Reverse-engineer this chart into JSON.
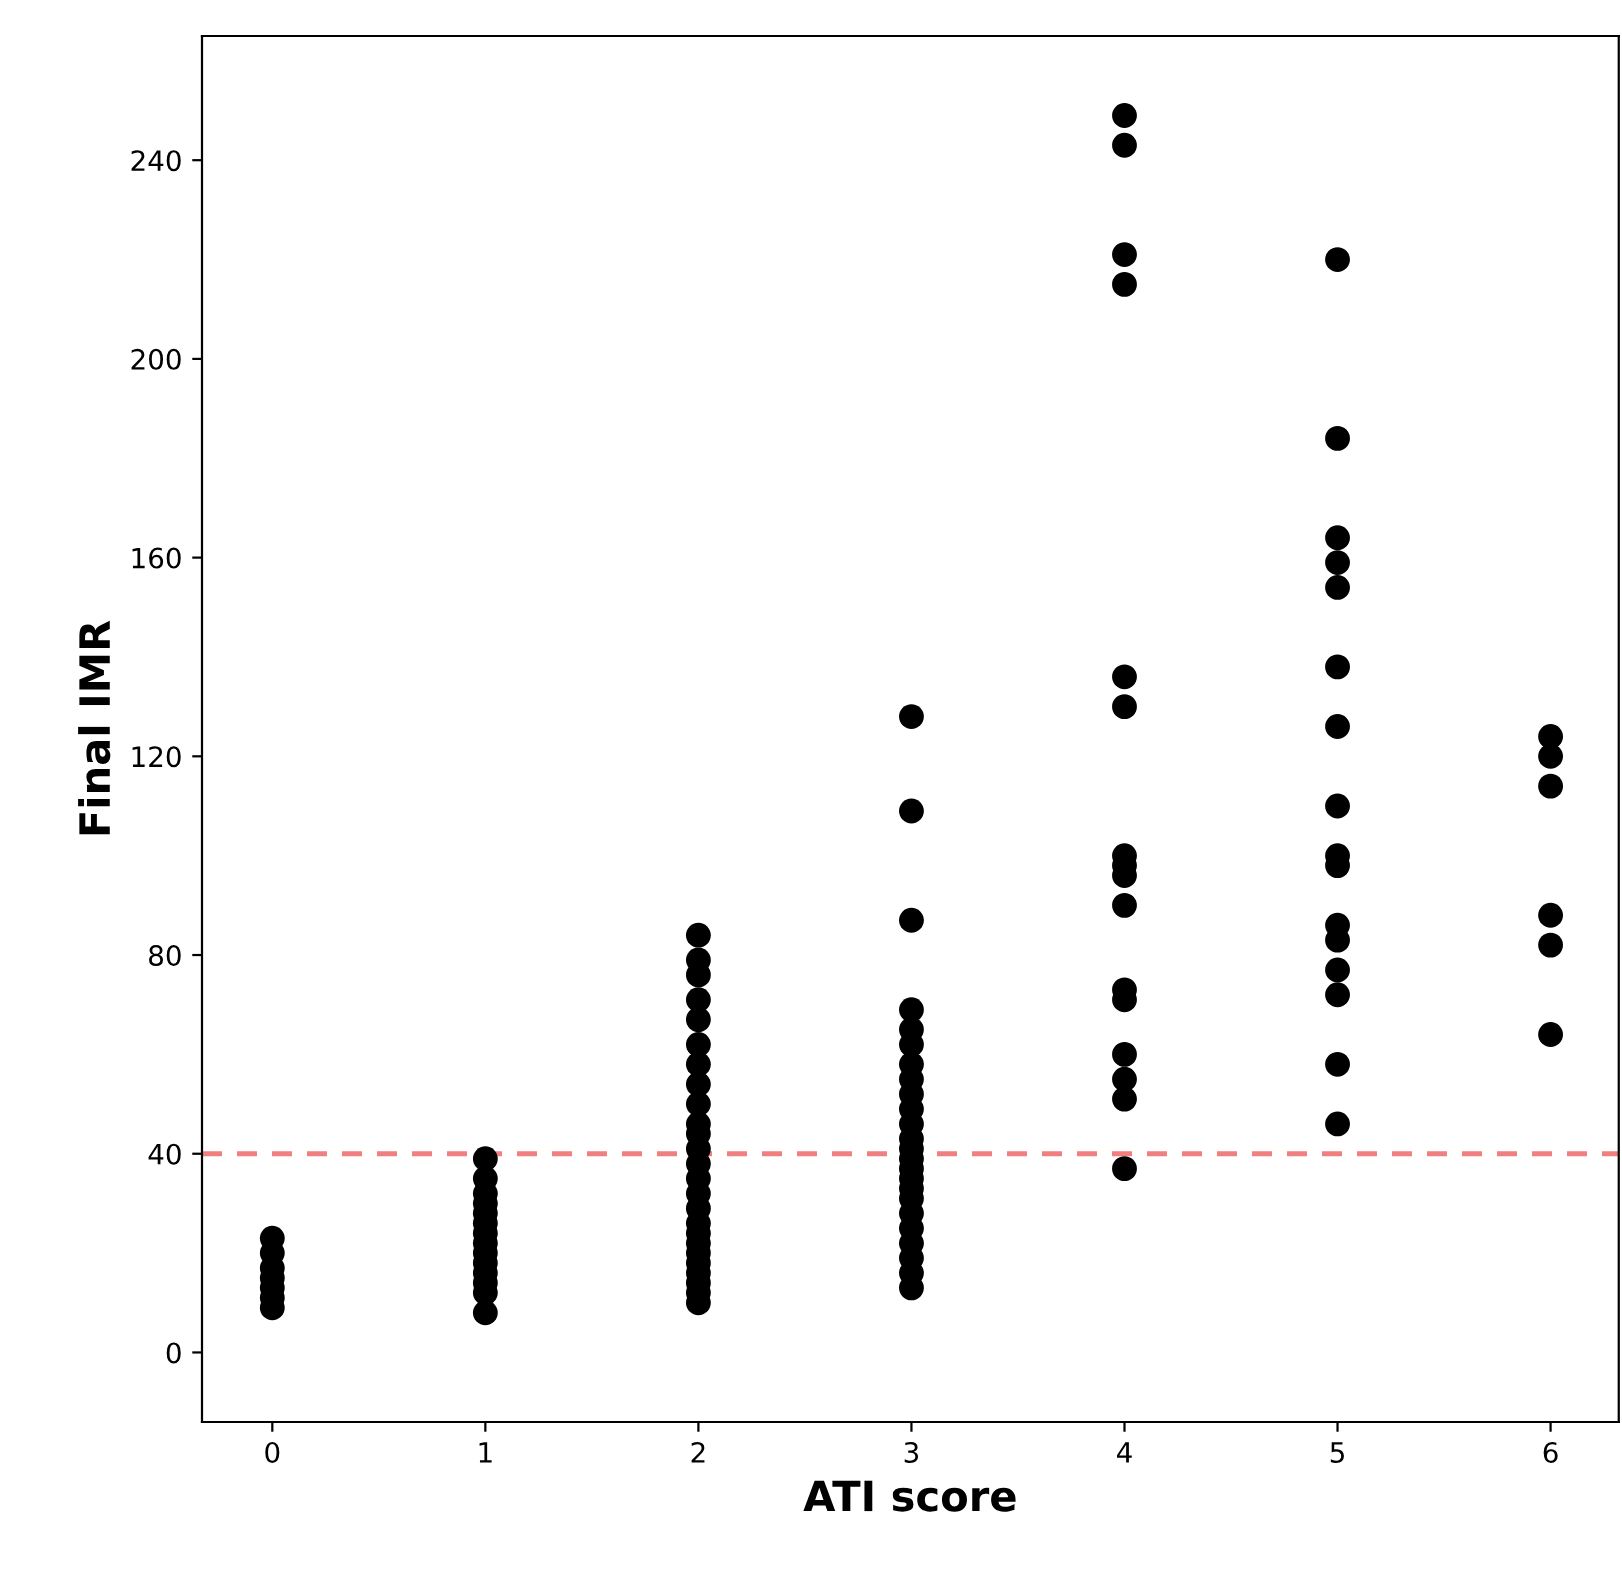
{
  "chart_data": {
    "type": "scatter",
    "xlabel": "ATI score",
    "ylabel": "Final IMR",
    "x": [
      0,
      0,
      0,
      0,
      0,
      0,
      0,
      1,
      1,
      1,
      1,
      1,
      1,
      1,
      1,
      1,
      1,
      1,
      1,
      1,
      1,
      2,
      2,
      2,
      2,
      2,
      2,
      2,
      2,
      2,
      2,
      2,
      2,
      2,
      2,
      2,
      2,
      2,
      2,
      2,
      2,
      2,
      2,
      2,
      2,
      2,
      3,
      3,
      3,
      3,
      3,
      3,
      3,
      3,
      3,
      3,
      3,
      3,
      3,
      3,
      3,
      3,
      3,
      3,
      3,
      3,
      3,
      3,
      3,
      3,
      4,
      4,
      4,
      4,
      4,
      4,
      4,
      4,
      4,
      4,
      4,
      4,
      4,
      4,
      4,
      4,
      5,
      5,
      5,
      5,
      5,
      5,
      5,
      5,
      5,
      5,
      5,
      5,
      5,
      5,
      5,
      5,
      6,
      6,
      6,
      6,
      6,
      6
    ],
    "series": [
      {
        "color": "#000000",
        "values": [
          23,
          20,
          17,
          15,
          13,
          11,
          9,
          39,
          35,
          32,
          30,
          28,
          26,
          24,
          22,
          20,
          18,
          16,
          14,
          12,
          8,
          84,
          79,
          76,
          71,
          67,
          62,
          58,
          54,
          50,
          46,
          44,
          41,
          38,
          35,
          32,
          29,
          26,
          24,
          22,
          20,
          18,
          16,
          14,
          12,
          10,
          128,
          109,
          87,
          69,
          65,
          62,
          58,
          55,
          52,
          49,
          46,
          43,
          41,
          39,
          37,
          35,
          33,
          31,
          28,
          25,
          22,
          19,
          16,
          13,
          249,
          243,
          221,
          215,
          136,
          130,
          100,
          98,
          96,
          90,
          73,
          71,
          60,
          55,
          51,
          37,
          220,
          184,
          164,
          159,
          154,
          138,
          126,
          110,
          100,
          98,
          86,
          83,
          77,
          72,
          58,
          46,
          124,
          120,
          114,
          88,
          82,
          64
        ]
      }
    ],
    "marker": "circle",
    "xlim": [
      -0.33,
      6.32
    ],
    "ylim": [
      -14,
      265
    ],
    "xticks": [
      0,
      1,
      2,
      3,
      4,
      5,
      6
    ],
    "yticks": [
      0,
      40,
      80,
      120,
      160,
      200,
      240
    ],
    "grid": false,
    "legend": false,
    "ref_lines": [
      {
        "axis": "y",
        "value": 40,
        "color": "#f08080",
        "line_style": "dashed"
      }
    ]
  }
}
